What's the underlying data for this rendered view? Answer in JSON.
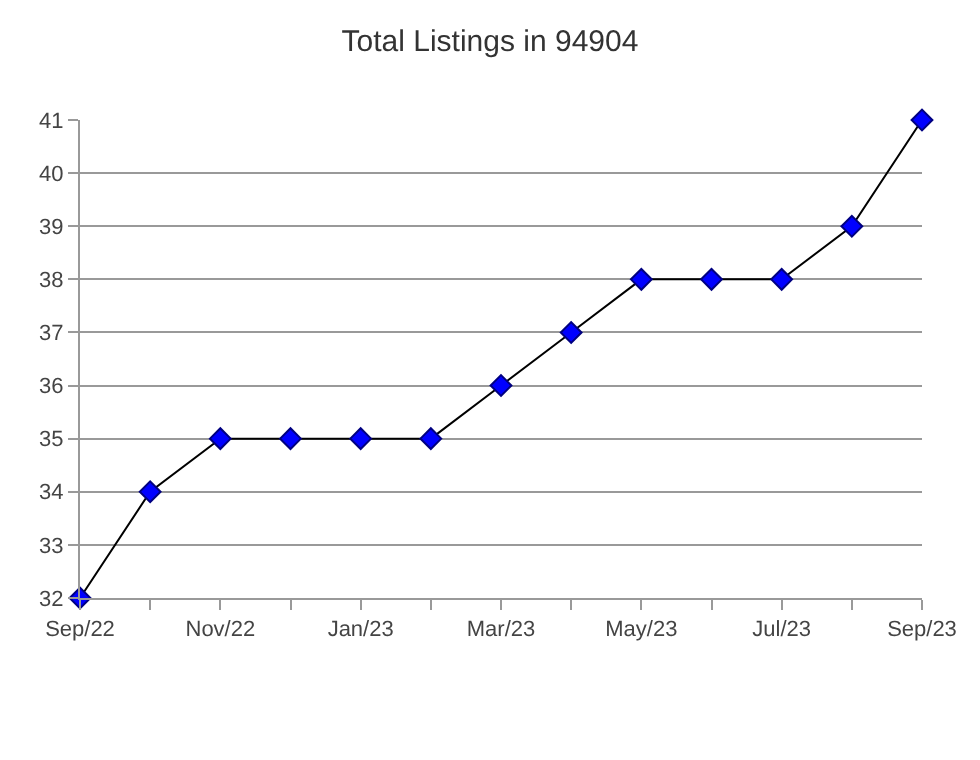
{
  "chart_data": {
    "type": "line",
    "title": "Total Listings in 94904",
    "categories": [
      "Sep/22",
      null,
      "Nov/22",
      null,
      "Jan/23",
      null,
      "Mar/23",
      null,
      "May/23",
      null,
      "Jul/23",
      null,
      "Sep/23"
    ],
    "series": [
      {
        "color": "#0000ff",
        "values": [
          32,
          34,
          35,
          35,
          35,
          35,
          36,
          37,
          38,
          38,
          38,
          39,
          41
        ]
      }
    ],
    "ylim": [
      32,
      41
    ],
    "yticks": [
      32,
      33,
      34,
      35,
      36,
      37,
      38,
      39,
      40,
      41
    ],
    "grid": "y",
    "marker": "diamond",
    "line_style": "solid"
  }
}
